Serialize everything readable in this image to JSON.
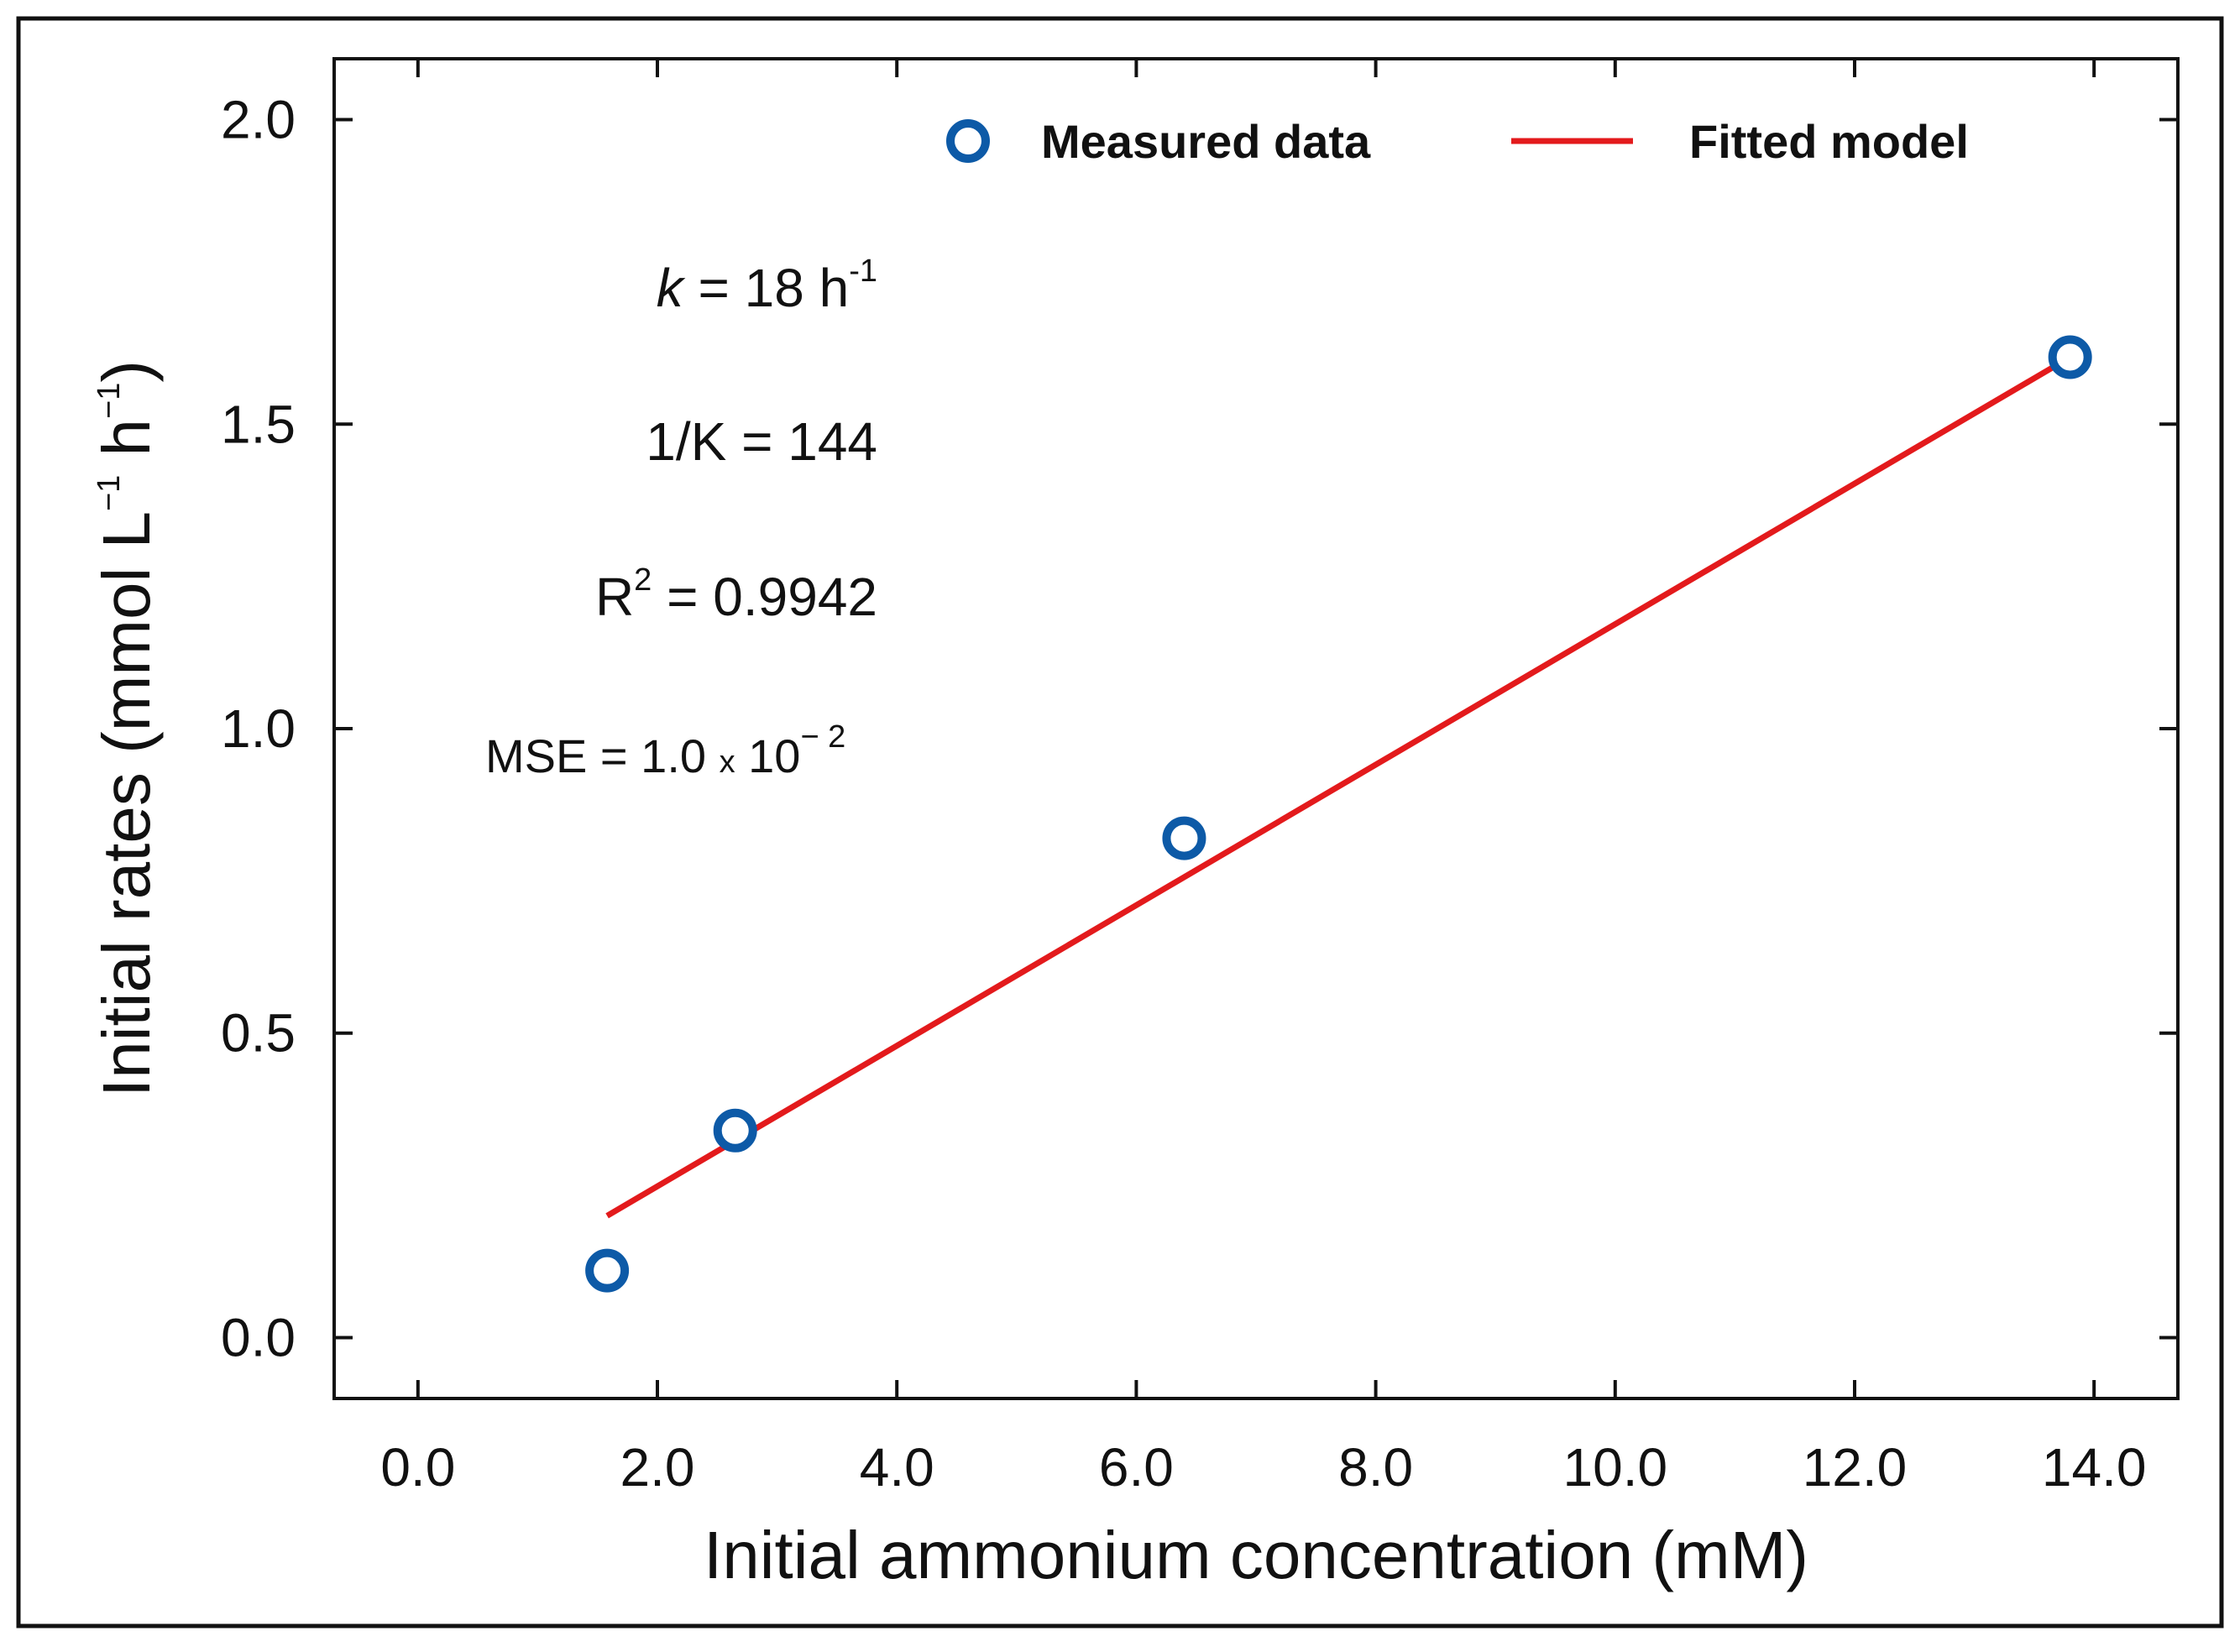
{
  "chart_data": {
    "type": "scatter",
    "title": "",
    "xlabel": "Initial ammonium concentration (mM)",
    "ylabel": "Initial rates (mmol L",
    "ylabel_parts": [
      {
        "text": "Initial rates (mmol L",
        "sup": false
      },
      {
        "text": "−1",
        "sup": true
      },
      {
        "text": " h",
        "sup": false
      },
      {
        "text": "−1",
        "sup": true
      },
      {
        "text": ")",
        "sup": false
      }
    ],
    "xlim": [
      -0.7,
      14.7
    ],
    "ylim": [
      -0.1,
      2.1
    ],
    "xticks": [
      0,
      2,
      4,
      6,
      8,
      10,
      12,
      14
    ],
    "xtick_labels": [
      "0.0",
      "2.0",
      "4.0",
      "6.0",
      "8.0",
      "10.0",
      "12.0",
      "14.0"
    ],
    "yticks": [
      0,
      0.5,
      1.0,
      1.5,
      2.0
    ],
    "ytick_labels": [
      "0.0",
      "0.5",
      "1.0",
      "1.5",
      "2.0"
    ],
    "grid": false,
    "series": [
      {
        "name": "Measured data",
        "kind": "scatter",
        "color": "#0d5aa7",
        "x": [
          1.58,
          2.65,
          6.4,
          13.8
        ],
        "y": [
          0.11,
          0.34,
          0.82,
          1.61
        ]
      },
      {
        "name": "Fitted model",
        "kind": "line",
        "color": "#e31a1c",
        "x": [
          1.58,
          13.8
        ],
        "y": [
          0.2,
          1.61
        ]
      }
    ],
    "legend": {
      "placement": "top-right",
      "entries": [
        {
          "label": "Measured data",
          "marker": "circle"
        },
        {
          "label": "Fitted model",
          "marker": "line"
        }
      ]
    },
    "annotations": {
      "k": {
        "var": "k",
        "rest": " = 18  h",
        "sup": "-1"
      },
      "inv_k": {
        "text": "1/K = 144"
      },
      "r2": {
        "base": "R",
        "sup": "2",
        "rest": " = 0.9942"
      },
      "mse": {
        "prefix": "MSE = 1.0 ",
        "times": "x",
        "mid": " 10",
        "sup": "− 2"
      }
    }
  }
}
